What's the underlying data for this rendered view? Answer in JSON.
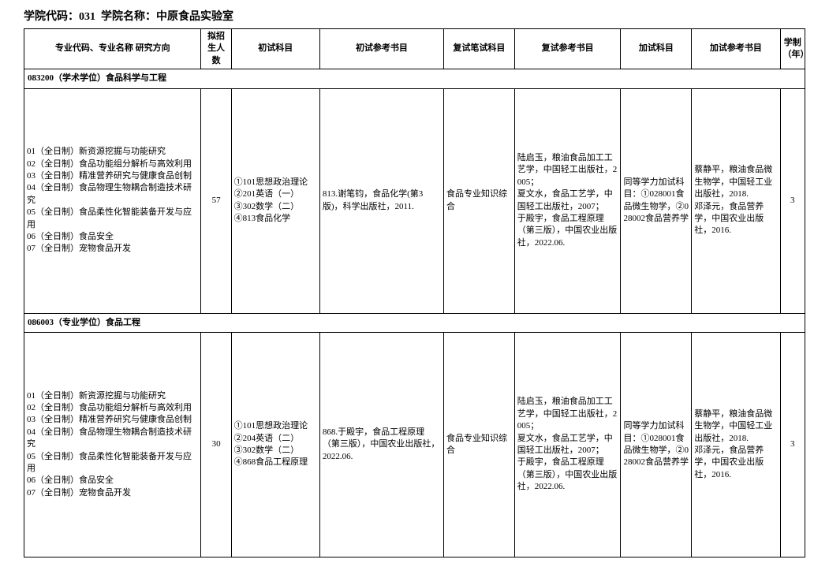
{
  "header": {
    "code_label": "学院代码：",
    "code_value": "031",
    "name_label": "学院名称：",
    "name_value": "中原食品实验室"
  },
  "columns": {
    "c1": "专业代码、专业名称 研究方向",
    "c2": "拟招生人数",
    "c3": "初试科目",
    "c4": "初试参考书目",
    "c5": "复试笔试科目",
    "c6": "复试参考书目",
    "c7": "加试科目",
    "c8": "加试参考书目",
    "c9": "学制（年）"
  },
  "section1": {
    "title": "083200（学术学位）食品科学与工程",
    "directions": "01（全日制）新资源挖掘与功能研究\n02（全日制）食品功能组分解析与高效利用\n03（全日制）精准营养研究与健康食品创制\n04（全日制）食品物理生物耦合制造技术研究\n05（全日制）食品柔性化智能装备开发与应用\n06（全日制）食品安全\n07（全日制）宠物食品开发",
    "num": "57",
    "prelim_subjects": "①101思想政治理论\n②201英语（一）\n③302数学（二）\n④813食品化学",
    "prelim_refs": "813.谢笔钧，食品化学(第3版)，科学出版社，2011.",
    "retest_subject": "食品专业知识综合",
    "retest_refs": "陆启玉，粮油食品加工工艺学，中国轻工出版社，2005；\n夏文水，食品工艺学，中国轻工出版社，2007；\n于殿宇，食品工程原理（第三版），中国农业出版社，2022.06.",
    "extra_subjects": "同等学力加试科目：①028001食品微生物学，②028002食品营养学",
    "extra_refs": "蔡静平，粮油食品微生物学，中国轻工业出版社，2018.\n邓泽元，食品营养学，中国农业出版社，2016.",
    "years": "3"
  },
  "section2": {
    "title": "086003（专业学位）食品工程",
    "directions": "01（全日制）新资源挖掘与功能研究\n02（全日制）食品功能组分解析与高效利用\n03（全日制）精准营养研究与健康食品创制\n04（全日制）食品物理生物耦合制造技术研究\n05（全日制）食品柔性化智能装备开发与应用\n06（全日制）食品安全\n07（全日制）宠物食品开发",
    "num": "30",
    "prelim_subjects": "①101思想政治理论\n②204英语（二）\n③302数学（二）\n④868食品工程原理",
    "prelim_refs": "868.于殿宇，食品工程原理（第三版），中国农业出版社，2022.06.",
    "retest_subject": "食品专业知识综合",
    "retest_refs": "陆启玉，粮油食品加工工艺学，中国轻工出版社，2005；\n夏文水，食品工艺学，中国轻工出版社，2007；\n于殿宇，食品工程原理（第三版），中国农业出版社，2022.06.",
    "extra_subjects": "同等学力加试科目：①028001食品微生物学，②028002食品营养学",
    "extra_refs": "蔡静平，粮油食品微生物学，中国轻工业出版社，2018.\n邓泽元，食品营养学，中国农业出版社，2016.",
    "years": "3"
  }
}
